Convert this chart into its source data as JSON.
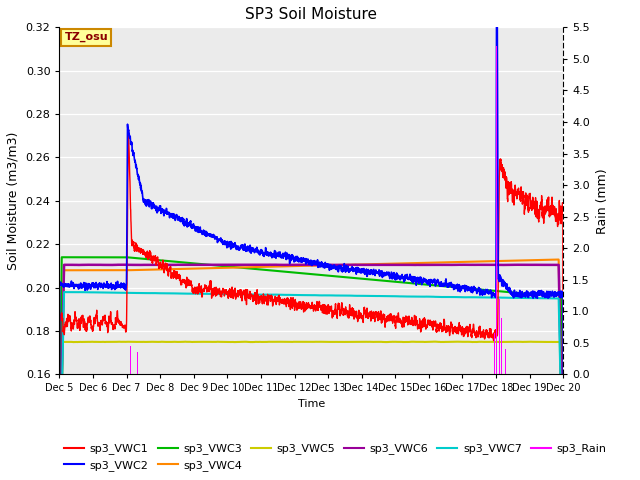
{
  "title": "SP3 Soil Moisture",
  "xlabel": "Time",
  "ylabel_left": "Soil Moisture (m3/m3)",
  "ylabel_right": "Rain (mm)",
  "ylim_left": [
    0.16,
    0.32
  ],
  "ylim_right": [
    0.0,
    5.5
  ],
  "yticks_left": [
    0.16,
    0.18,
    0.2,
    0.22,
    0.24,
    0.26,
    0.28,
    0.3,
    0.32
  ],
  "yticks_right": [
    0.0,
    0.5,
    1.0,
    1.5,
    2.0,
    2.5,
    3.0,
    3.5,
    4.0,
    4.5,
    5.0,
    5.5
  ],
  "xtick_labels": [
    "Dec 5",
    "Dec 6",
    "Dec 7",
    "Dec 8",
    "Dec 9",
    "Dec 10",
    "Dec 11",
    "Dec 12",
    "Dec 13",
    "Dec 14",
    "Dec 15",
    "Dec 16",
    "Dec 17",
    "Dec 18",
    "Dec 19",
    "Dec 20"
  ],
  "bg_color": "#ebebeb",
  "annotation_text": "TZ_osu",
  "annotation_bg": "#ffff99",
  "annotation_border": "#cc8800",
  "colors": {
    "sp3_VWC1": "#ff0000",
    "sp3_VWC2": "#0000ff",
    "sp3_VWC3": "#00bb00",
    "sp3_VWC4": "#ff8800",
    "sp3_VWC5": "#cccc00",
    "sp3_VWC6": "#990099",
    "sp3_VWC7": "#00cccc",
    "sp3_Rain": "#ff00ff"
  }
}
